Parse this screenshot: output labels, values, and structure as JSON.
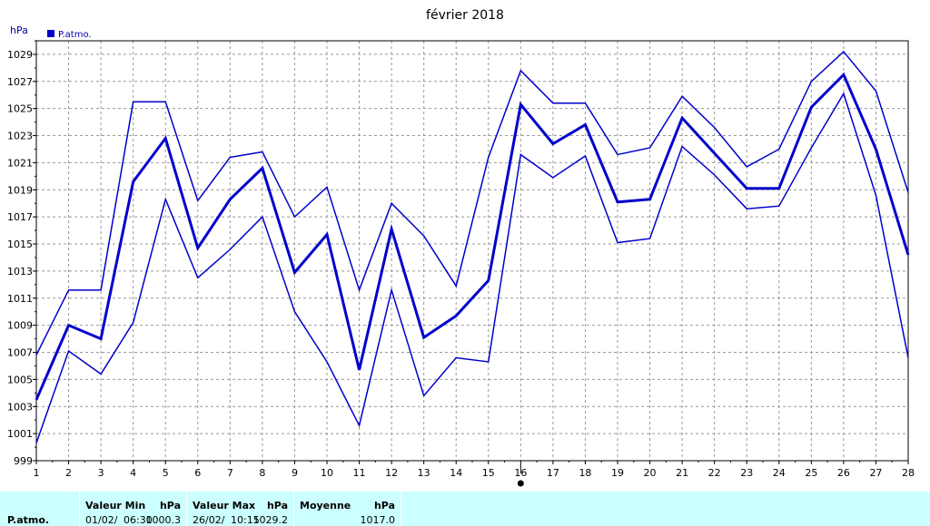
{
  "chart_data": {
    "type": "line",
    "title": "février 2018",
    "ylabel": "hPa",
    "ylim": [
      999,
      1030
    ],
    "yticks": [
      999,
      1001,
      1003,
      1005,
      1007,
      1009,
      1011,
      1013,
      1015,
      1017,
      1019,
      1021,
      1023,
      1025,
      1027,
      1029
    ],
    "x": [
      1,
      2,
      3,
      4,
      5,
      6,
      7,
      8,
      9,
      10,
      11,
      12,
      13,
      14,
      15,
      16,
      17,
      18,
      19,
      20,
      21,
      22,
      23,
      24,
      25,
      26,
      27,
      28
    ],
    "grid": true,
    "legend": {
      "placement": "top-left",
      "label": "P.atmo."
    },
    "marker_day": 16,
    "series": [
      {
        "role": "max",
        "values": [
          1006.8,
          1011.6,
          1011.6,
          1025.5,
          1025.5,
          1018.2,
          1021.4,
          1021.8,
          1017.0,
          1019.2,
          1011.6,
          1018.0,
          1015.6,
          1011.9,
          1021.4,
          1027.8,
          1025.4,
          1025.4,
          1021.6,
          1022.1,
          1025.9,
          1023.6,
          1020.7,
          1022.0,
          1027.0,
          1029.2,
          1026.3,
          1018.8
        ]
      },
      {
        "role": "mean",
        "values": [
          1003.5,
          1009.0,
          1008.0,
          1019.6,
          1022.8,
          1014.7,
          1018.3,
          1020.6,
          1012.9,
          1015.7,
          1005.7,
          1016.1,
          1008.1,
          1009.7,
          1012.3,
          1025.3,
          1022.4,
          1023.8,
          1018.1,
          1018.3,
          1024.3,
          1021.7,
          1019.1,
          1019.1,
          1025.1,
          1027.5,
          1022.0,
          1014.2
        ]
      },
      {
        "role": "min",
        "values": [
          1000.3,
          1007.1,
          1005.4,
          1009.2,
          1018.3,
          1012.5,
          1014.6,
          1017.0,
          1010.0,
          1006.3,
          1001.6,
          1011.6,
          1003.8,
          1006.6,
          1006.3,
          1021.6,
          1019.9,
          1021.5,
          1015.1,
          1015.4,
          1022.2,
          1020.1,
          1017.6,
          1017.8,
          1022.1,
          1026.1,
          1018.6,
          1006.6
        ]
      }
    ],
    "colors": {
      "line": "#0000cc",
      "grid": "#999999",
      "axis": "#000000"
    }
  },
  "stats": {
    "row_label": "P.atmo.",
    "min": {
      "header": "Valeur Min",
      "unit": "hPa",
      "date": "01/02/",
      "time": "06:30",
      "value": "1000.3"
    },
    "max": {
      "header": "Valeur Max",
      "unit": "hPa",
      "date": "26/02/",
      "time": "10:15",
      "value": "1029.2"
    },
    "mean": {
      "header": "Moyenne",
      "unit": "hPa",
      "value": "1017.0"
    }
  }
}
